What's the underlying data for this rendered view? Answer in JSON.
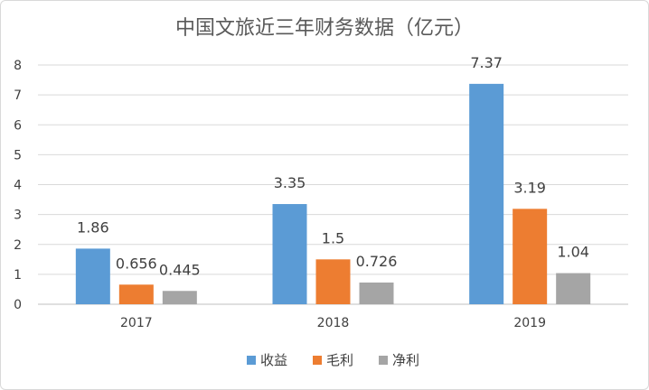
{
  "chart_data": {
    "type": "bar",
    "title": "中国文旅近三年财务数据（亿元）",
    "categories": [
      "2017",
      "2018",
      "2019"
    ],
    "series": [
      {
        "name": "收益",
        "color": "#5b9bd5",
        "values": [
          1.86,
          3.35,
          7.37
        ],
        "labels": [
          "1.86",
          "3.35",
          "7.37"
        ]
      },
      {
        "name": "毛利",
        "color": "#ed7d31",
        "values": [
          0.656,
          1.5,
          3.19
        ],
        "labels": [
          "0.656",
          "1.5",
          "3.19"
        ]
      },
      {
        "name": "净利",
        "color": "#a5a5a5",
        "values": [
          0.445,
          0.726,
          1.04
        ],
        "labels": [
          "0.445",
          "0.726",
          "1.04"
        ]
      }
    ],
    "ylim": [
      0,
      8
    ],
    "yticks": [
      "0",
      "1",
      "2",
      "3",
      "4",
      "5",
      "6",
      "7",
      "8"
    ],
    "xlabel": "",
    "ylabel": "",
    "grid": true,
    "legend_position": "bottom"
  }
}
